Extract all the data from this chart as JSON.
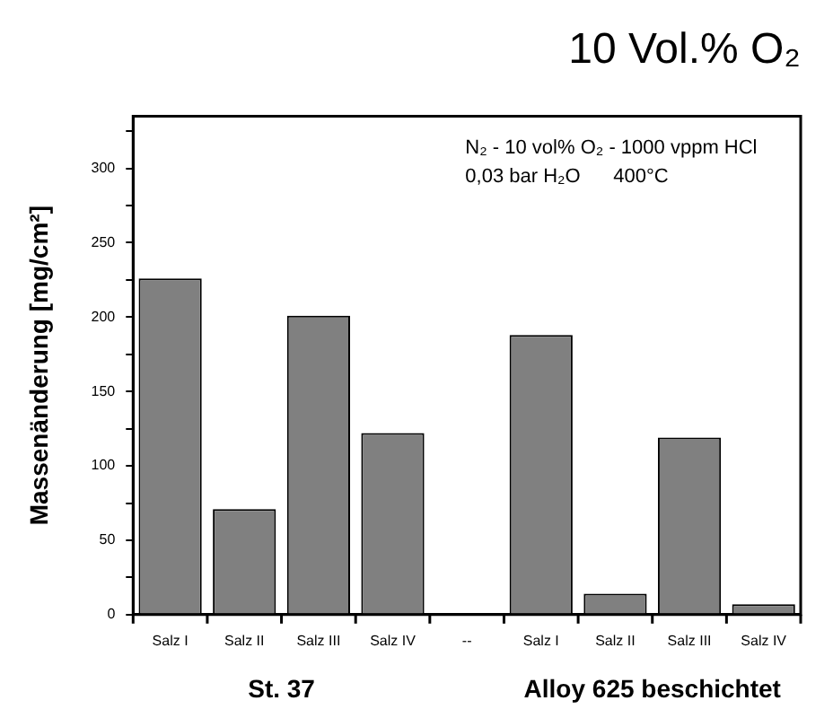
{
  "chart_data": {
    "type": "bar",
    "title": "10 Vol.% O₂",
    "ylabel": "Massenänderung [mg/cm²]",
    "categories": [
      "Salz I",
      "Salz II",
      "Salz III",
      "Salz IV",
      "--",
      "Salz I",
      "Salz II",
      "Salz III",
      "Salz IV"
    ],
    "values": [
      226,
      71,
      201,
      122,
      null,
      188,
      14,
      119,
      7
    ],
    "color": "#808080",
    "ylim": [
      0,
      335
    ],
    "yticks": [
      0,
      {
        "value": 25,
        "label": null
      },
      50,
      {
        "value": 75,
        "label": null
      },
      100,
      {
        "value": 125,
        "label": null
      },
      150,
      {
        "value": 175,
        "label": null
      },
      200,
      {
        "value": 225,
        "label": null
      },
      250,
      {
        "value": 275,
        "label": null
      },
      300,
      {
        "value": 325,
        "label": null
      }
    ],
    "annotations": [
      "N₂ - 10 vol% O₂ - 1000 vppm HCl",
      "0,03 bar H₂O      400°C",
      "St. 37",
      "Alloy 625 beschichtet"
    ],
    "grid": false,
    "legend": false
  }
}
